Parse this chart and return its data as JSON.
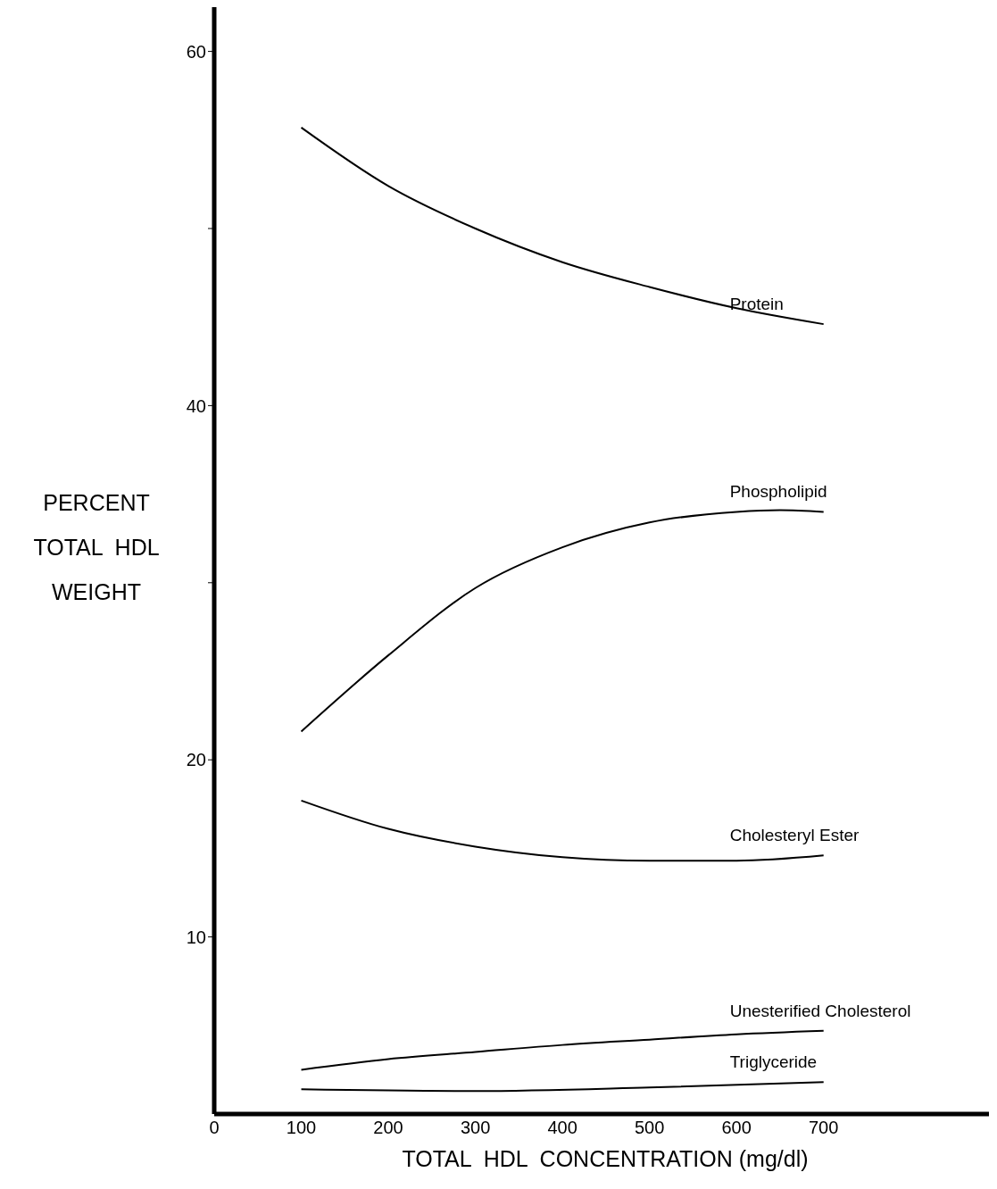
{
  "chart_data": {
    "type": "line",
    "xlabel": "TOTAL  HDL  CONCENTRATION (mg/dl)",
    "ylabel": "PERCENT\nTOTAL  HDL\nWEIGHT",
    "xlim": [
      0,
      890
    ],
    "xticks": [
      0,
      100,
      200,
      300,
      400,
      500,
      600,
      700
    ],
    "ylim": [
      0,
      62.5
    ],
    "yticks": [
      10,
      20,
      {
        "value": 30,
        "label": null
      },
      40,
      {
        "value": 50,
        "label": null
      },
      60
    ],
    "grid": false,
    "legend": false,
    "marker": "none",
    "line_style": "solid",
    "series": [
      {
        "name": "Protein",
        "color": "#000000",
        "x": [
          100,
          200,
          300,
          400,
          500,
          600,
          700
        ],
        "values": [
          55.7,
          52.4,
          50.0,
          48.1,
          46.7,
          45.5,
          44.6
        ]
      },
      {
        "name": "Phospholipid",
        "color": "#000000",
        "x": [
          100,
          200,
          300,
          400,
          500,
          600,
          650,
          700
        ],
        "values": [
          21.6,
          25.9,
          29.7,
          32.0,
          33.4,
          34.0,
          34.1,
          34.0
        ]
      },
      {
        "name": "Cholesteryl Ester",
        "color": "#000000",
        "x": [
          100,
          200,
          300,
          400,
          500,
          600,
          700
        ],
        "values": [
          17.7,
          16.1,
          15.1,
          14.5,
          14.3,
          14.3,
          14.6
        ]
      },
      {
        "name": "Unesterified  Cholesterol",
        "color": "#000000",
        "x": [
          100,
          200,
          300,
          400,
          500,
          600,
          700
        ],
        "values": [
          2.5,
          3.1,
          3.5,
          3.9,
          4.2,
          4.5,
          4.7
        ]
      },
      {
        "name": "Triglyceride",
        "color": "#000000",
        "x": [
          100,
          300,
          500,
          700
        ],
        "values": [
          1.4,
          1.3,
          1.5,
          1.8
        ]
      }
    ]
  }
}
